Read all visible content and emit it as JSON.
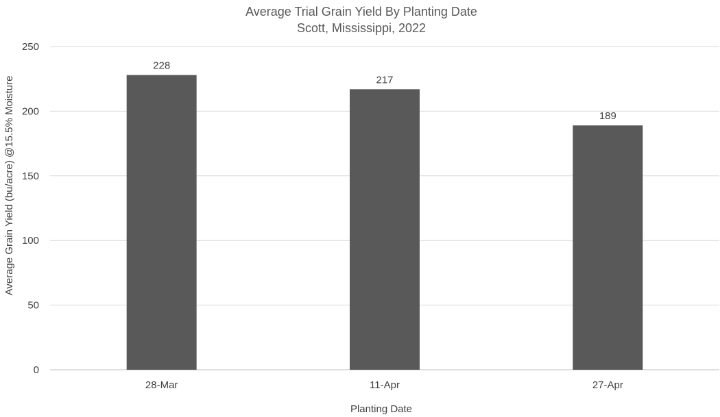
{
  "chart_data": {
    "type": "bar",
    "title": "Average Trial Grain Yield By Planting Date",
    "subtitle": "Scott, Mississippi, 2022",
    "xlabel": "Planting Date",
    "ylabel": "Average Grain Yield (bu/acre) @15.5% Moisture",
    "categories": [
      "28-Mar",
      "11-Apr",
      "27-Apr"
    ],
    "values": [
      228,
      217,
      189
    ],
    "data_labels": [
      "228",
      "217",
      "189"
    ],
    "ylim": [
      0,
      250
    ],
    "yticks": [
      0,
      50,
      100,
      150,
      200,
      250
    ],
    "grid": true,
    "legend": "none",
    "bar_color": "#595959"
  }
}
